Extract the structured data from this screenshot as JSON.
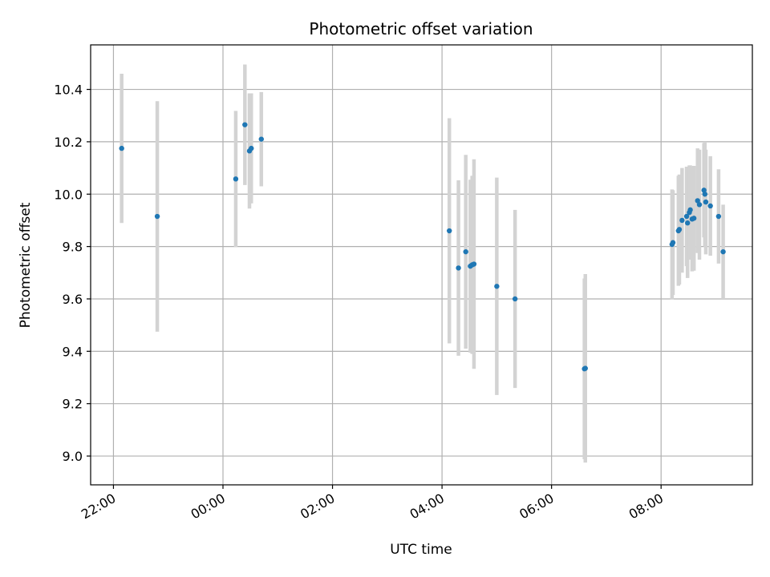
{
  "chart_data": {
    "type": "scatter",
    "title": "Photometric offset variation",
    "xlabel": "UTC time",
    "ylabel": "Photometric offset",
    "x_axis": "time (HH:MM, UTC), spanning from the previous evening into the next morning",
    "xlim": [
      "21:35",
      "09:40"
    ],
    "ylim": [
      8.89,
      10.57
    ],
    "grid": true,
    "x_ticks": [
      "22:00",
      "00:00",
      "02:00",
      "04:00",
      "06:00",
      "08:00"
    ],
    "y_ticks": [
      9.0,
      9.2,
      9.4,
      9.6,
      9.8,
      10.0,
      10.2,
      10.4
    ],
    "y_tick_labels": [
      "9.0",
      "9.2",
      "9.4",
      "9.6",
      "9.8",
      "10.0",
      "10.2",
      "10.4"
    ],
    "colors": {
      "points": "#1f77b4",
      "errorbars": "#d3d3d3",
      "grid": "#b0b0b0"
    },
    "points": [
      {
        "x": "22:09",
        "y": 10.175,
        "err": 0.285
      },
      {
        "x": "22:48",
        "y": 9.915,
        "err": 0.44
      },
      {
        "x": "00:14",
        "y": 10.058,
        "err": 0.26
      },
      {
        "x": "00:24",
        "y": 10.265,
        "err": 0.23
      },
      {
        "x": "00:29",
        "y": 10.165,
        "err": 0.22
      },
      {
        "x": "00:31",
        "y": 10.175,
        "err": 0.21
      },
      {
        "x": "00:42",
        "y": 10.21,
        "err": 0.18
      },
      {
        "x": "04:08",
        "y": 9.86,
        "err": 0.43
      },
      {
        "x": "04:18",
        "y": 9.718,
        "err": 0.335
      },
      {
        "x": "04:26",
        "y": 9.78,
        "err": 0.37
      },
      {
        "x": "04:31",
        "y": 9.725,
        "err": 0.33
      },
      {
        "x": "04:33",
        "y": 9.73,
        "err": 0.34
      },
      {
        "x": "04:35",
        "y": 9.733,
        "err": 0.4
      },
      {
        "x": "05:00",
        "y": 9.648,
        "err": 0.415
      },
      {
        "x": "05:20",
        "y": 9.6,
        "err": 0.34
      },
      {
        "x": "06:36",
        "y": 9.333,
        "err": 0.345
      },
      {
        "x": "06:37",
        "y": 9.335,
        "err": 0.36
      },
      {
        "x": "08:12",
        "y": 9.808,
        "err": 0.21
      },
      {
        "x": "08:13",
        "y": 9.815,
        "err": 0.2
      },
      {
        "x": "08:19",
        "y": 9.86,
        "err": 0.21
      },
      {
        "x": "08:20",
        "y": 9.865,
        "err": 0.21
      },
      {
        "x": "08:23",
        "y": 9.9,
        "err": 0.2
      },
      {
        "x": "08:28",
        "y": 9.915,
        "err": 0.19
      },
      {
        "x": "08:29",
        "y": 9.89,
        "err": 0.21
      },
      {
        "x": "08:31",
        "y": 9.93,
        "err": 0.18
      },
      {
        "x": "08:32",
        "y": 9.94,
        "err": 0.17
      },
      {
        "x": "08:34",
        "y": 9.905,
        "err": 0.2
      },
      {
        "x": "08:36",
        "y": 9.908,
        "err": 0.2
      },
      {
        "x": "08:40",
        "y": 9.975,
        "err": 0.2
      },
      {
        "x": "08:42",
        "y": 9.96,
        "err": 0.21
      },
      {
        "x": "08:47",
        "y": 10.015,
        "err": 0.18
      },
      {
        "x": "08:48",
        "y": 10.0,
        "err": 0.2
      },
      {
        "x": "08:49",
        "y": 9.97,
        "err": 0.2
      },
      {
        "x": "08:54",
        "y": 9.955,
        "err": 0.19
      },
      {
        "x": "09:03",
        "y": 9.915,
        "err": 0.18
      },
      {
        "x": "09:08",
        "y": 9.78,
        "err": 0.18
      }
    ]
  }
}
